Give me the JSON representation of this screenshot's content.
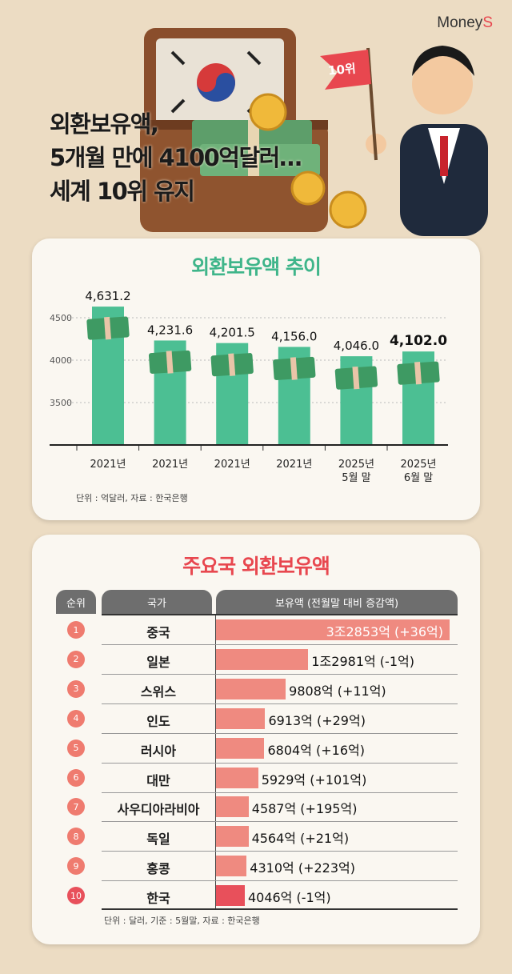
{
  "brand": {
    "logo_main": "Money",
    "logo_accent": "S"
  },
  "headline": {
    "lines": [
      "외환보유액,",
      "5개월 만에 4100억달러…",
      "세계 10위 유지"
    ]
  },
  "illustration": {
    "flag_text": "10위"
  },
  "colors": {
    "bar_green": "#4cbf93",
    "bar_red": "#ef8a80",
    "bar_highlight": "#e8505b",
    "title_green": "#3fb58a",
    "title_red": "#e8474f",
    "header_gray": "#6e6e6e"
  },
  "chart_data": {
    "type": "bar",
    "title": "외환보유액 추이",
    "categories": [
      [
        "2021년"
      ],
      [
        "2021년"
      ],
      [
        "2021년"
      ],
      [
        "2021년"
      ],
      [
        "2025년",
        "5월 말"
      ],
      [
        "2025년",
        "6월 말"
      ]
    ],
    "values": [
      4631.2,
      4231.6,
      4201.5,
      4156.0,
      4046.0,
      4102.0
    ],
    "value_labels": [
      "4,631.2",
      "4,231.6",
      "4,201.5",
      "4,156.0",
      "4,046.0",
      "4,102.0"
    ],
    "yticks": [
      3500,
      4000,
      4500
    ],
    "ylim": [
      3000,
      4700
    ],
    "grid": "dotted horizontal",
    "note": "단위 : 억달러, 자료 : 한국은행"
  },
  "table": {
    "title": "주요국 외환보유액",
    "headers": [
      "순위",
      "국가",
      "보유액 (전월말 대비 증감액)"
    ],
    "rows": [
      {
        "rank": "1",
        "country": "중국",
        "value": 32853,
        "label": "3조2853억 (+36억)"
      },
      {
        "rank": "2",
        "country": "일본",
        "value": 12981,
        "label": "1조2981억 (-1억)"
      },
      {
        "rank": "3",
        "country": "스위스",
        "value": 9808,
        "label": "9808억 (+11억)"
      },
      {
        "rank": "4",
        "country": "인도",
        "value": 6913,
        "label": "6913억 (+29억)"
      },
      {
        "rank": "5",
        "country": "러시아",
        "value": 6804,
        "label": "6804억 (+16억)"
      },
      {
        "rank": "6",
        "country": "대만",
        "value": 5929,
        "label": "5929억 (+101억)"
      },
      {
        "rank": "7",
        "country": "사우디아라비아",
        "value": 4587,
        "label": "4587억 (+195억)"
      },
      {
        "rank": "8",
        "country": "독일",
        "value": 4564,
        "label": "4564억 (+21억)"
      },
      {
        "rank": "9",
        "country": "홍콩",
        "value": 4310,
        "label": "4310억 (+223억)"
      },
      {
        "rank": "10",
        "country": "한국",
        "value": 4046,
        "label": "4046억 (-1억)"
      }
    ],
    "note": "단위 : 달러, 기준 : 5월말, 자료 : 한국은행"
  }
}
